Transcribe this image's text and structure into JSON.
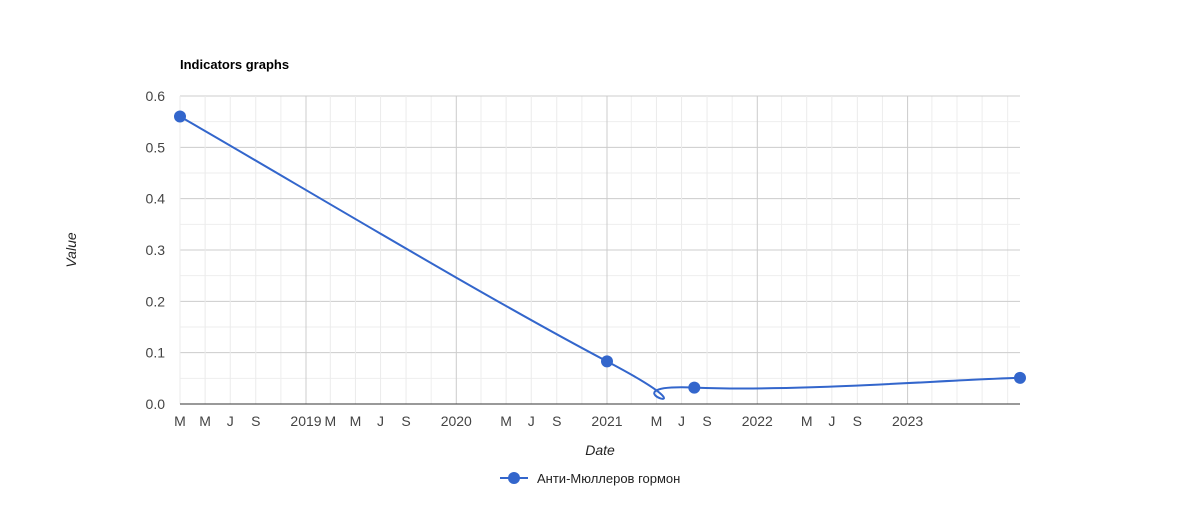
{
  "chart_data": {
    "type": "line",
    "title": "Indicators graphs",
    "xlabel": "Date",
    "ylabel": "Value",
    "ylim": [
      0,
      0.6
    ],
    "yticks": [
      "0.0",
      "0.1",
      "0.2",
      "0.3",
      "0.4",
      "0.5",
      "0.6"
    ],
    "xlim": [
      "2018-03-01",
      "2023-10-01"
    ],
    "xticks": [
      {
        "date": "2018-03-01",
        "label": "M"
      },
      {
        "date": "2018-05-01",
        "label": "M"
      },
      {
        "date": "2018-07-01",
        "label": "J"
      },
      {
        "date": "2018-09-01",
        "label": "S"
      },
      {
        "date": "2019-01-01",
        "label": "2019"
      },
      {
        "date": "2019-03-01",
        "label": "M"
      },
      {
        "date": "2019-05-01",
        "label": "M"
      },
      {
        "date": "2019-07-01",
        "label": "J"
      },
      {
        "date": "2019-09-01",
        "label": "S"
      },
      {
        "date": "2020-01-01",
        "label": "2020"
      },
      {
        "date": "2020-05-01",
        "label": "M"
      },
      {
        "date": "2020-07-01",
        "label": "J"
      },
      {
        "date": "2020-09-01",
        "label": "S"
      },
      {
        "date": "2021-01-01",
        "label": "2021"
      },
      {
        "date": "2021-05-01",
        "label": "M"
      },
      {
        "date": "2021-07-01",
        "label": "J"
      },
      {
        "date": "2021-09-01",
        "label": "S"
      },
      {
        "date": "2022-01-01",
        "label": "2022"
      },
      {
        "date": "2022-05-01",
        "label": "M"
      },
      {
        "date": "2022-07-01",
        "label": "J"
      },
      {
        "date": "2022-09-01",
        "label": "S"
      },
      {
        "date": "2023-01-01",
        "label": "2023"
      }
    ],
    "grid": true,
    "legend": "bottom",
    "series": [
      {
        "name": "Анти-Мюллеров гормон",
        "color": "#3366cc",
        "points": [
          {
            "x": "2018-03-01",
            "y": 0.56
          },
          {
            "x": "2021-01-01",
            "y": 0.083
          },
          {
            "x": "2021-08-01",
            "y": 0.032
          },
          {
            "x": "2023-10-01",
            "y": 0.051
          }
        ]
      }
    ]
  }
}
